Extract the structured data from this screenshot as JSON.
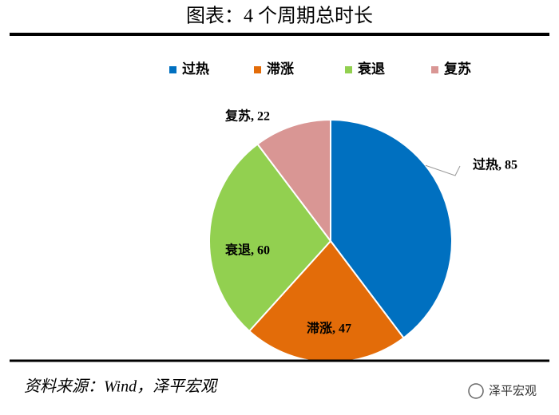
{
  "chart_data": {
    "type": "pie",
    "title": "图表：4 个周期总时长",
    "categories": [
      "过热",
      "滞涨",
      "衰退",
      "复苏"
    ],
    "values": [
      85,
      47,
      60,
      22
    ],
    "value_labels": [
      "过热, 85",
      "滞涨, 47",
      "衰退, 60",
      "复苏, 22"
    ],
    "colors": [
      "#0070c0",
      "#e36c09",
      "#92d050",
      "#d99694"
    ],
    "legend": "top"
  },
  "footer": {
    "source": "资料来源：Wind，泽平宏观",
    "watermark": "泽平宏观"
  }
}
